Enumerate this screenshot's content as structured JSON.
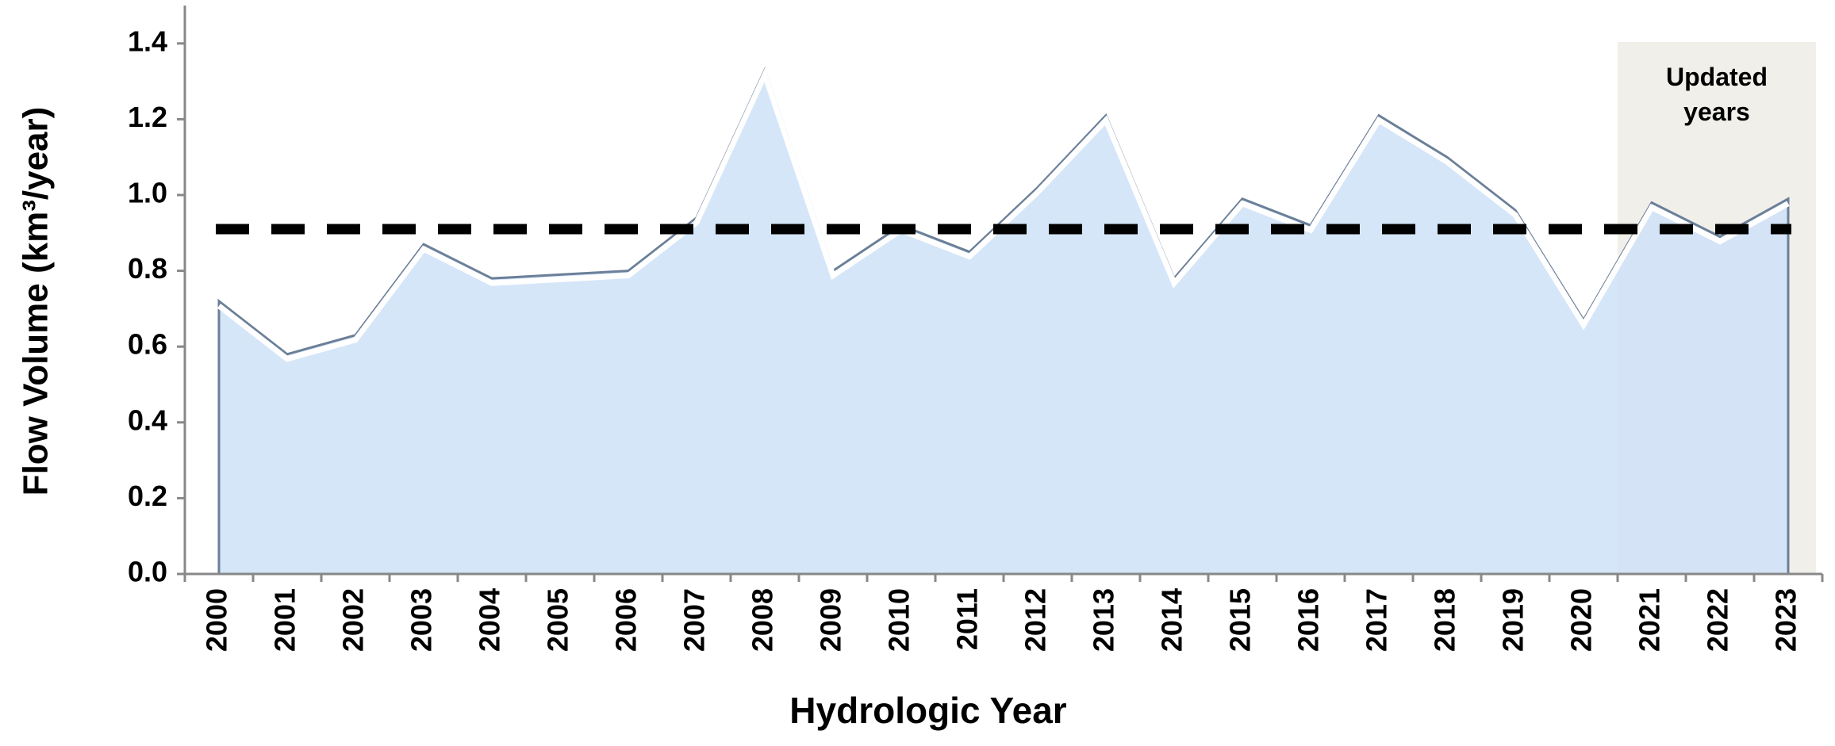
{
  "chart_data": {
    "type": "area",
    "x_label": "Hydrologic Year",
    "y_label": "Flow Volume (km³/year)",
    "categories": [
      "2000",
      "2001",
      "2002",
      "2003",
      "2004",
      "2005",
      "2006",
      "2007",
      "2008",
      "2009",
      "2010",
      "2011",
      "2012",
      "2013",
      "2014",
      "2015",
      "2016",
      "2017",
      "2018",
      "2019",
      "2020",
      "2021",
      "2022",
      "2023"
    ],
    "values": [
      0.72,
      0.58,
      0.63,
      0.87,
      0.78,
      0.79,
      0.8,
      0.94,
      1.33,
      0.8,
      0.92,
      0.85,
      1.02,
      1.21,
      0.78,
      0.99,
      0.92,
      1.21,
      1.1,
      0.96,
      0.67,
      0.98,
      0.89,
      0.99
    ],
    "color": "#cfe2f8",
    "ylim": [
      0,
      1.5
    ],
    "yticks": [
      {
        "value": 0,
        "label": "0.0"
      },
      0.2,
      0.4,
      0.6,
      0.8,
      {
        "value": 1,
        "label": "1.0"
      },
      1.2,
      1.4
    ],
    "reference_line": {
      "value": 0.91,
      "style": "dashed",
      "color": "#000000"
    },
    "highlight": {
      "label": "Updated years",
      "from": "2021",
      "to": "2023",
      "color": "#f1efe9"
    }
  }
}
